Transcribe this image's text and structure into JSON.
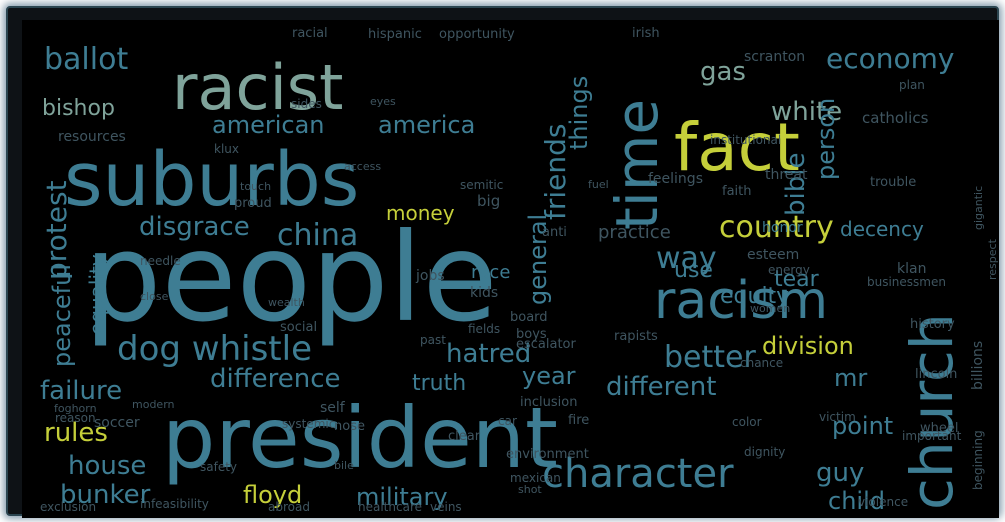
{
  "wordcloud": {
    "palette": {
      "background": "#000000",
      "teal": "#3e7d93",
      "sage": "#7fa39a",
      "yellow": "#c5cf3a",
      "grey": "#3f5560",
      "dim": "#2a3a42"
    },
    "words": [
      {
        "text": "people",
        "color": "#3e7d93"
      },
      {
        "text": "president",
        "color": "#3e7d93"
      },
      {
        "text": "suburbs",
        "color": "#3e7d93"
      },
      {
        "text": "racist",
        "color": "#7fa39a"
      },
      {
        "text": "fact",
        "color": "#c5cf3a"
      },
      {
        "text": "church",
        "color": "#3e7d93"
      },
      {
        "text": "time",
        "color": "#3e7d93"
      },
      {
        "text": "racism",
        "color": "#3e7d93"
      },
      {
        "text": "character",
        "color": "#3e7d93"
      },
      {
        "text": "dog whistle",
        "color": "#3e7d93"
      },
      {
        "text": "economy",
        "color": "#3e7d93"
      },
      {
        "text": "ballot",
        "color": "#3e7d93"
      },
      {
        "text": "country",
        "color": "#c5cf3a"
      },
      {
        "text": "china",
        "color": "#3e7d93"
      },
      {
        "text": "white",
        "color": "#7fa39a"
      },
      {
        "text": "american",
        "color": "#3e7d93"
      },
      {
        "text": "america",
        "color": "#3e7d93"
      },
      {
        "text": "bishop",
        "color": "#7fa39a"
      },
      {
        "text": "disgrace",
        "color": "#3e7d93"
      },
      {
        "text": "money",
        "color": "#c5cf3a"
      },
      {
        "text": "way",
        "color": "#3e7d93"
      },
      {
        "text": "friends",
        "color": "#3e7d93"
      },
      {
        "text": "things",
        "color": "#3e7d93"
      },
      {
        "text": "general",
        "color": "#3e7d93"
      },
      {
        "text": "bible",
        "color": "#3e7d93"
      },
      {
        "text": "person",
        "color": "#3e7d93"
      },
      {
        "text": "protest",
        "color": "#3e7d93"
      },
      {
        "text": "peaceful",
        "color": "#3e7d93"
      },
      {
        "text": "equality",
        "color": "#3e7d93"
      },
      {
        "text": "failure",
        "color": "#3e7d93"
      },
      {
        "text": "difference",
        "color": "#3e7d93"
      },
      {
        "text": "hatred",
        "color": "#3e7d93"
      },
      {
        "text": "year",
        "color": "#3e7d93"
      },
      {
        "text": "better",
        "color": "#3e7d93"
      },
      {
        "text": "division",
        "color": "#c5cf3a"
      },
      {
        "text": "different",
        "color": "#3e7d93"
      },
      {
        "text": "use",
        "color": "#3e7d93"
      },
      {
        "text": "tear",
        "color": "#3e7d93"
      },
      {
        "text": "equity",
        "color": "#3e7d93"
      },
      {
        "text": "rules",
        "color": "#c5cf3a"
      },
      {
        "text": "house",
        "color": "#3e7d93"
      },
      {
        "text": "bunker",
        "color": "#3e7d93"
      },
      {
        "text": "floyd",
        "color": "#c5cf3a"
      },
      {
        "text": "military",
        "color": "#3e7d93"
      },
      {
        "text": "guy",
        "color": "#3e7d93"
      },
      {
        "text": "point",
        "color": "#3e7d93"
      },
      {
        "text": "child",
        "color": "#3e7d93"
      },
      {
        "text": "mr",
        "color": "#3e7d93"
      },
      {
        "text": "truth",
        "color": "#3e7d93"
      },
      {
        "text": "gas",
        "color": "#7fa39a"
      },
      {
        "text": "scranton",
        "color": "#3f5560"
      },
      {
        "text": "decency",
        "color": "#3e7d93"
      },
      {
        "text": "honor",
        "color": "#3e7d93"
      },
      {
        "text": "resources",
        "color": "#3f5560"
      },
      {
        "text": "race",
        "color": "#3e7d93"
      },
      {
        "text": "catholics",
        "color": "#3f5560"
      },
      {
        "text": "threat",
        "color": "#3f5560"
      },
      {
        "text": "faith",
        "color": "#3f5560"
      },
      {
        "text": "hispanic",
        "color": "#3f5560"
      },
      {
        "text": "opportunity",
        "color": "#3f5560"
      },
      {
        "text": "racial",
        "color": "#3f5560"
      },
      {
        "text": "irish",
        "color": "#3f5560"
      },
      {
        "text": "klux",
        "color": "#3f5560"
      },
      {
        "text": "access",
        "color": "#3f5560"
      },
      {
        "text": "feelings",
        "color": "#3f5560"
      },
      {
        "text": "proud",
        "color": "#3f5560"
      },
      {
        "text": "big",
        "color": "#3f5560"
      },
      {
        "text": "anti",
        "color": "#3f5560"
      },
      {
        "text": "practice",
        "color": "#3f5560"
      },
      {
        "text": "esteem",
        "color": "#3f5560"
      },
      {
        "text": "klan",
        "color": "#3f5560"
      },
      {
        "text": "businessmen",
        "color": "#3f5560"
      },
      {
        "text": "history",
        "color": "#3f5560"
      },
      {
        "text": "billions",
        "color": "#3f5560"
      },
      {
        "text": "color",
        "color": "#3f5560"
      },
      {
        "text": "important",
        "color": "#3f5560"
      },
      {
        "text": "lincoln",
        "color": "#3f5560"
      },
      {
        "text": "violence",
        "color": "#3f5560"
      },
      {
        "text": "victim",
        "color": "#3f5560"
      },
      {
        "text": "dignity",
        "color": "#3f5560"
      },
      {
        "text": "wheel",
        "color": "#3f5560"
      },
      {
        "text": "safety",
        "color": "#3f5560"
      },
      {
        "text": "environment",
        "color": "#3f5560"
      },
      {
        "text": "soccer",
        "color": "#3f5560"
      },
      {
        "text": "self",
        "color": "#3f5560"
      },
      {
        "text": "nose",
        "color": "#3f5560"
      },
      {
        "text": "clear",
        "color": "#3f5560"
      },
      {
        "text": "car",
        "color": "#3f5560"
      },
      {
        "text": "kids",
        "color": "#3f5560"
      },
      {
        "text": "boys",
        "color": "#3f5560"
      },
      {
        "text": "jobs",
        "color": "#3f5560"
      },
      {
        "text": "rapists",
        "color": "#3f5560"
      },
      {
        "text": "chance",
        "color": "#3f5560"
      },
      {
        "text": "trouble",
        "color": "#3f5560"
      },
      {
        "text": "respect",
        "color": "#3f5560"
      },
      {
        "text": "exclusion",
        "color": "#3f5560"
      },
      {
        "text": "infeasibility",
        "color": "#3f5560"
      },
      {
        "text": "reason",
        "color": "#3f5560"
      },
      {
        "text": "mexican",
        "color": "#3f5560"
      },
      {
        "text": "systemic",
        "color": "#3f5560"
      },
      {
        "text": "escalator",
        "color": "#3f5560"
      },
      {
        "text": "inclusion",
        "color": "#3f5560"
      },
      {
        "text": "fire",
        "color": "#3f5560"
      },
      {
        "text": "beginning",
        "color": "#3f5560"
      },
      {
        "text": "gigantic",
        "color": "#3f5560"
      },
      {
        "text": "board",
        "color": "#3f5560"
      },
      {
        "text": "fields",
        "color": "#3f5560"
      },
      {
        "text": "social",
        "color": "#3f5560"
      },
      {
        "text": "wealth",
        "color": "#3f5560"
      },
      {
        "text": "needle",
        "color": "#3f5560"
      },
      {
        "text": "sides",
        "color": "#3f5560"
      },
      {
        "text": "eyes",
        "color": "#3f5560"
      },
      {
        "text": "semitic",
        "color": "#3f5560"
      },
      {
        "text": "modern",
        "color": "#3f5560"
      },
      {
        "text": "foghorn",
        "color": "#3f5560"
      },
      {
        "text": "institutional",
        "color": "#3f5560"
      },
      {
        "text": "women",
        "color": "#3f5560"
      },
      {
        "text": "energy",
        "color": "#3f5560"
      },
      {
        "text": "shot",
        "color": "#3f5560"
      },
      {
        "text": "past",
        "color": "#3f5560"
      },
      {
        "text": "fuel",
        "color": "#3f5560"
      },
      {
        "text": "bile",
        "color": "#3f5560"
      },
      {
        "text": "healthcare",
        "color": "#3f5560"
      },
      {
        "text": "veins",
        "color": "#3f5560"
      },
      {
        "text": "abroad",
        "color": "#3f5560"
      },
      {
        "text": "plan",
        "color": "#3f5560"
      },
      {
        "text": "close",
        "color": "#3f5560"
      },
      {
        "text": "touch",
        "color": "#3f5560"
      }
    ]
  }
}
